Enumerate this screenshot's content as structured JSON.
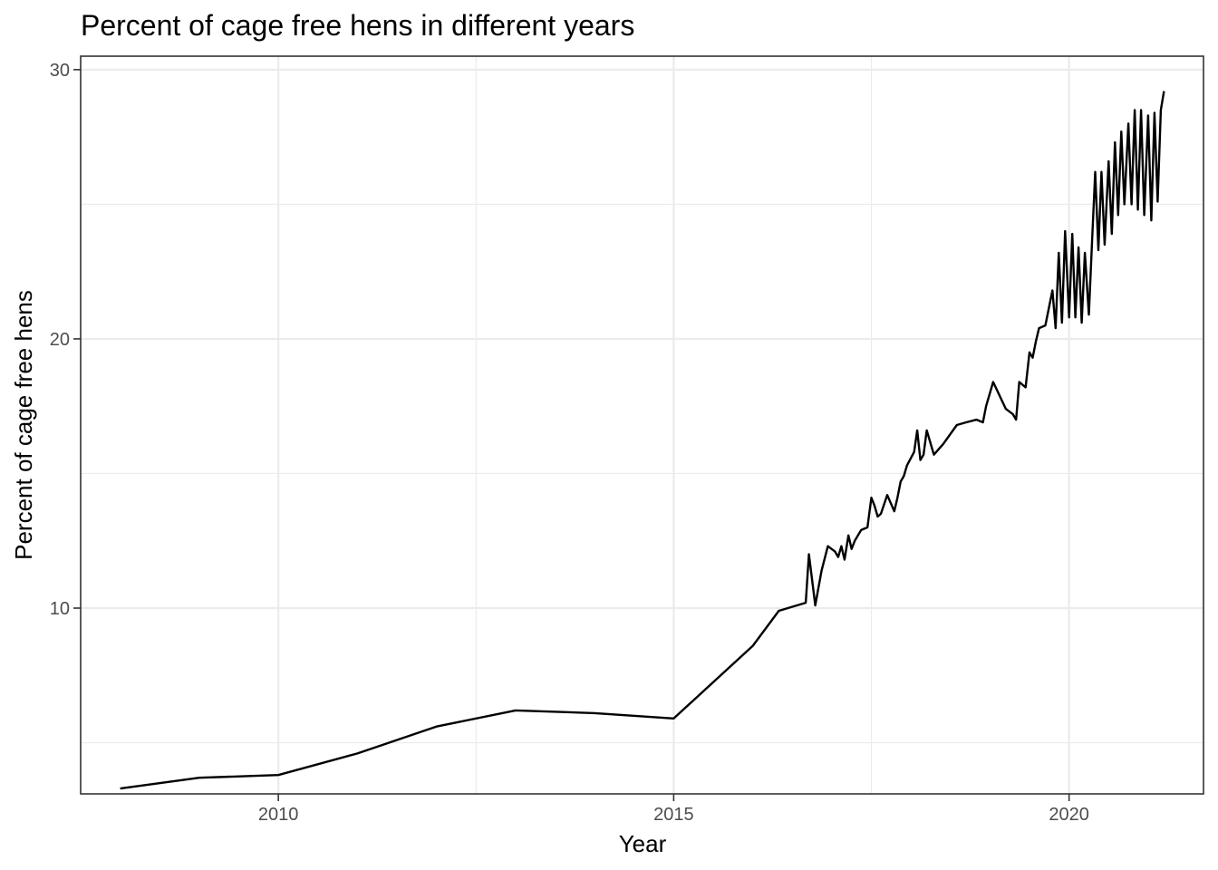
{
  "chart_data": {
    "type": "line",
    "title": "Percent of cage free hens in different years",
    "xlabel": "Year",
    "ylabel": "Percent of cage free hens",
    "xlim": [
      2007.5,
      2021.7
    ],
    "ylim": [
      3.1,
      30.5
    ],
    "x_ticks": [
      2010,
      2015,
      2020
    ],
    "x_tick_labels": [
      "2010",
      "2015",
      "2020"
    ],
    "y_ticks": [
      10,
      20,
      30
    ],
    "y_tick_labels": [
      "10",
      "20",
      "30"
    ],
    "x_minor": [
      2007.5,
      2012.5,
      2017.5
    ],
    "y_minor": [
      5,
      15,
      25
    ],
    "grid": true,
    "legend": "none",
    "series": [
      {
        "x": [
          2008.0,
          2009.0,
          2010.0,
          2011.0,
          2012.0,
          2013.0,
          2014.0,
          2015.0,
          2016.0,
          2016.33,
          2016.67,
          2016.71,
          2016.79,
          2016.87,
          2016.95,
          2017.04,
          2017.08,
          2017.12,
          2017.16,
          2017.21,
          2017.25,
          2017.29,
          2017.37,
          2017.45,
          2017.5,
          2017.54,
          2017.58,
          2017.62,
          2017.7,
          2017.79,
          2017.83,
          2017.87,
          2017.91,
          2017.95,
          2018.04,
          2018.08,
          2018.12,
          2018.16,
          2018.2,
          2018.29,
          2018.41,
          2018.58,
          2018.7,
          2018.83,
          2018.91,
          2018.95,
          2019.04,
          2019.2,
          2019.29,
          2019.33,
          2019.37,
          2019.45,
          2019.5,
          2019.54,
          2019.58,
          2019.62,
          2019.7,
          2019.79,
          2019.83,
          2019.87,
          2019.91,
          2019.95,
          2020.0,
          2020.04,
          2020.08,
          2020.12,
          2020.16,
          2020.2,
          2020.25,
          2020.29,
          2020.33,
          2020.37,
          2020.41,
          2020.45,
          2020.5,
          2020.54,
          2020.58,
          2020.62,
          2020.66,
          2020.7,
          2020.75,
          2020.79,
          2020.83,
          2020.87,
          2020.91,
          2020.95,
          2021.0,
          2021.04,
          2021.08,
          2021.12,
          2021.16,
          2021.2
        ],
        "values": [
          3.3,
          3.7,
          3.8,
          4.6,
          5.6,
          6.2,
          6.1,
          5.9,
          8.6,
          9.9,
          10.2,
          12.0,
          10.1,
          11.4,
          12.3,
          12.1,
          11.9,
          12.3,
          11.8,
          12.7,
          12.2,
          12.5,
          12.9,
          13.0,
          14.1,
          13.8,
          13.4,
          13.5,
          14.2,
          13.6,
          14.1,
          14.7,
          14.9,
          15.3,
          15.8,
          16.6,
          15.5,
          15.7,
          16.6,
          15.7,
          16.1,
          16.8,
          16.9,
          17.0,
          16.9,
          17.5,
          18.4,
          17.4,
          17.2,
          17.0,
          18.4,
          18.2,
          19.5,
          19.3,
          19.9,
          20.4,
          20.5,
          21.8,
          20.4,
          23.2,
          20.6,
          24.0,
          20.8,
          23.9,
          20.8,
          23.4,
          20.6,
          23.2,
          20.9,
          23.6,
          26.2,
          23.3,
          26.2,
          23.5,
          26.6,
          23.9,
          27.3,
          24.6,
          27.7,
          25.0,
          28.0,
          25.0,
          28.5,
          24.8,
          28.5,
          24.6,
          28.3,
          24.4,
          28.4,
          25.1,
          28.5,
          29.2
        ]
      }
    ]
  }
}
